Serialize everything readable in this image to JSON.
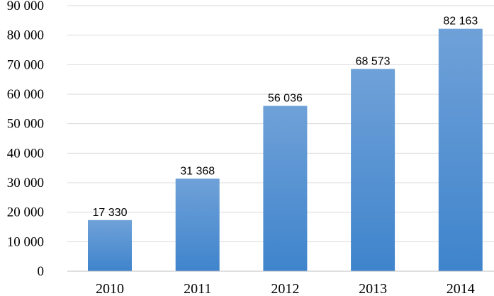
{
  "chart_data": {
    "type": "bar",
    "categories": [
      "2010",
      "2011",
      "2012",
      "2013",
      "2014"
    ],
    "values": [
      17330,
      31368,
      56036,
      68573,
      82163
    ],
    "value_labels": [
      "17 330",
      "31 368",
      "56 036",
      "68 573",
      "82 163"
    ],
    "ylim": [
      0,
      90000
    ],
    "yticks": [
      0,
      10000,
      20000,
      30000,
      40000,
      50000,
      60000,
      70000,
      80000,
      90000
    ],
    "ytick_labels": [
      "0",
      "10 000",
      "20 000",
      "30 000",
      "40 000",
      "50 000",
      "60 000",
      "70 000",
      "80 000",
      "90 000"
    ],
    "grid": true,
    "legend": "none",
    "bar_color_top": "#6fa1d8",
    "bar_color_bottom": "#3f84cc"
  }
}
